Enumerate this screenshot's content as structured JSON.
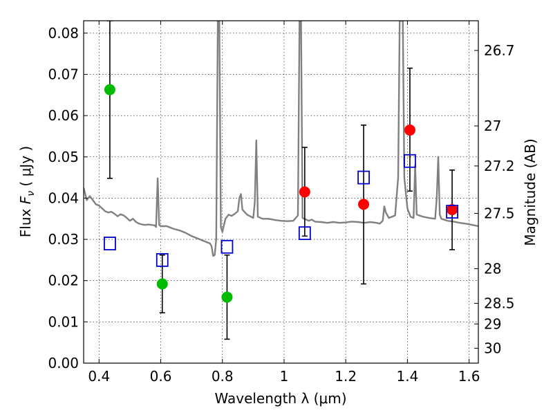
{
  "chart_data": {
    "type": "scatter",
    "xlabel": "Wavelength  λ (μm)",
    "ylabel": "Flux  F_ν  ( μJy )",
    "ylabel_parts": {
      "prefix": "Flux  ",
      "symbol": "F",
      "subscript": "ν",
      "suffix": "  ( μJy )"
    },
    "y2label": "Magnitude (AB)",
    "xlim": [
      0.35,
      1.63
    ],
    "ylim": [
      0.0,
      0.083
    ],
    "grid": true,
    "xticks": [
      0.4,
      0.6,
      0.8,
      1.0,
      1.2,
      1.4,
      1.6
    ],
    "xtick_labels": [
      "0.4",
      "0.6",
      "0.8",
      "1",
      "1.2",
      "1.4",
      "1.6"
    ],
    "yticks": [
      0.0,
      0.01,
      0.02,
      0.03,
      0.04,
      0.05,
      0.06,
      0.07,
      0.08
    ],
    "ytick_labels": [
      "0.00",
      "0.01",
      "0.02",
      "0.03",
      "0.04",
      "0.05",
      "0.06",
      "0.07",
      "0.08"
    ],
    "right_ticks": [
      {
        "label": "26.7",
        "flux": 0.0758
      },
      {
        "label": "27",
        "flux": 0.0575
      },
      {
        "label": "27.2",
        "flux": 0.0478
      },
      {
        "label": "27.5",
        "flux": 0.0363
      },
      {
        "label": "28",
        "flux": 0.0229
      },
      {
        "label": "28.5",
        "flux": 0.0145
      },
      {
        "label": "29",
        "flux": 0.0095
      },
      {
        "label": "30",
        "flux": 0.0036
      }
    ],
    "series": [
      {
        "kind": "line",
        "color": "#808080",
        "points": [
          [
            0.35,
            0.0425
          ],
          [
            0.36,
            0.0395
          ],
          [
            0.37,
            0.0405
          ],
          [
            0.38,
            0.0395
          ],
          [
            0.39,
            0.0385
          ],
          [
            0.4,
            0.0382
          ],
          [
            0.41,
            0.0375
          ],
          [
            0.42,
            0.0368
          ],
          [
            0.43,
            0.0365
          ],
          [
            0.44,
            0.0367
          ],
          [
            0.45,
            0.0362
          ],
          [
            0.46,
            0.0356
          ],
          [
            0.47,
            0.0361
          ],
          [
            0.48,
            0.0358
          ],
          [
            0.49,
            0.0352
          ],
          [
            0.5,
            0.0345
          ],
          [
            0.51,
            0.035
          ],
          [
            0.52,
            0.0342
          ],
          [
            0.53,
            0.0338
          ],
          [
            0.54,
            0.0336
          ],
          [
            0.55,
            0.0335
          ],
          [
            0.56,
            0.0336
          ],
          [
            0.57,
            0.0335
          ],
          [
            0.58,
            0.0334
          ],
          [
            0.585,
            0.033
          ],
          [
            0.59,
            0.0448
          ],
          [
            0.595,
            0.0335
          ],
          [
            0.6,
            0.0332
          ],
          [
            0.62,
            0.0332
          ],
          [
            0.64,
            0.0326
          ],
          [
            0.66,
            0.0322
          ],
          [
            0.68,
            0.0316
          ],
          [
            0.7,
            0.0308
          ],
          [
            0.72,
            0.0302
          ],
          [
            0.74,
            0.0296
          ],
          [
            0.76,
            0.029
          ],
          [
            0.765,
            0.0283
          ],
          [
            0.77,
            0.026
          ],
          [
            0.775,
            0.0262
          ],
          [
            0.78,
            0.03
          ],
          [
            0.785,
            0.083
          ],
          [
            0.79,
            0.083
          ],
          [
            0.795,
            0.033
          ],
          [
            0.8,
            0.0318
          ],
          [
            0.805,
            0.0335
          ],
          [
            0.81,
            0.035
          ],
          [
            0.82,
            0.036
          ],
          [
            0.83,
            0.0357
          ],
          [
            0.84,
            0.0362
          ],
          [
            0.85,
            0.0368
          ],
          [
            0.855,
            0.04
          ],
          [
            0.86,
            0.041
          ],
          [
            0.865,
            0.0372
          ],
          [
            0.88,
            0.036
          ],
          [
            0.9,
            0.0352
          ],
          [
            0.905,
            0.039
          ],
          [
            0.91,
            0.054
          ],
          [
            0.915,
            0.0355
          ],
          [
            0.93,
            0.035
          ],
          [
            0.95,
            0.035
          ],
          [
            0.97,
            0.0347
          ],
          [
            0.99,
            0.0345
          ],
          [
            1.01,
            0.0344
          ],
          [
            1.03,
            0.0345
          ],
          [
            1.045,
            0.0358
          ],
          [
            1.05,
            0.083
          ],
          [
            1.055,
            0.083
          ],
          [
            1.06,
            0.0352
          ],
          [
            1.08,
            0.0345
          ],
          [
            1.09,
            0.0348
          ],
          [
            1.1,
            0.0343
          ],
          [
            1.12,
            0.0342
          ],
          [
            1.14,
            0.034
          ],
          [
            1.16,
            0.0342
          ],
          [
            1.18,
            0.034
          ],
          [
            1.2,
            0.0341
          ],
          [
            1.22,
            0.0343
          ],
          [
            1.24,
            0.0342
          ],
          [
            1.26,
            0.034
          ],
          [
            1.28,
            0.0342
          ],
          [
            1.3,
            0.034
          ],
          [
            1.31,
            0.0338
          ],
          [
            1.32,
            0.0345
          ],
          [
            1.325,
            0.038
          ],
          [
            1.33,
            0.0365
          ],
          [
            1.34,
            0.0352
          ],
          [
            1.36,
            0.0358
          ],
          [
            1.37,
            0.045
          ],
          [
            1.375,
            0.083
          ],
          [
            1.385,
            0.083
          ],
          [
            1.39,
            0.045
          ],
          [
            1.4,
            0.0375
          ],
          [
            1.41,
            0.0355
          ],
          [
            1.42,
            0.0352
          ],
          [
            1.425,
            0.048
          ],
          [
            1.43,
            0.036
          ],
          [
            1.45,
            0.0355
          ],
          [
            1.47,
            0.0352
          ],
          [
            1.49,
            0.035
          ],
          [
            1.495,
            0.04
          ],
          [
            1.5,
            0.05
          ],
          [
            1.505,
            0.036
          ],
          [
            1.51,
            0.035
          ],
          [
            1.53,
            0.0345
          ],
          [
            1.55,
            0.0343
          ],
          [
            1.57,
            0.034
          ],
          [
            1.59,
            0.0338
          ],
          [
            1.61,
            0.0335
          ],
          [
            1.63,
            0.0332
          ]
        ]
      },
      {
        "kind": "points",
        "marker": "circle",
        "color": "#00bb00",
        "points": [
          {
            "x": 0.435,
            "y": 0.0663,
            "lo": 0.0448,
            "hi": 0.083
          },
          {
            "x": 0.605,
            "y": 0.0192,
            "lo": 0.0122,
            "hi": 0.0262
          },
          {
            "x": 0.815,
            "y": 0.016,
            "lo": 0.0058,
            "hi": 0.0262
          }
        ]
      },
      {
        "kind": "points",
        "marker": "circle",
        "color": "#ff0000",
        "points": [
          {
            "x": 1.067,
            "y": 0.0415,
            "lo": 0.0308,
            "hi": 0.0523
          },
          {
            "x": 1.258,
            "y": 0.0385,
            "lo": 0.0192,
            "hi": 0.0577
          },
          {
            "x": 1.408,
            "y": 0.0565,
            "lo": 0.0417,
            "hi": 0.0715
          },
          {
            "x": 1.545,
            "y": 0.0372,
            "lo": 0.0275,
            "hi": 0.0468
          }
        ]
      },
      {
        "kind": "points",
        "marker": "square",
        "color": "#0000cc",
        "points": [
          {
            "x": 0.435,
            "y": 0.029
          },
          {
            "x": 0.605,
            "y": 0.025
          },
          {
            "x": 0.815,
            "y": 0.0282
          },
          {
            "x": 1.067,
            "y": 0.0315
          },
          {
            "x": 1.258,
            "y": 0.045
          },
          {
            "x": 1.408,
            "y": 0.049
          },
          {
            "x": 1.545,
            "y": 0.0367
          }
        ]
      }
    ]
  }
}
